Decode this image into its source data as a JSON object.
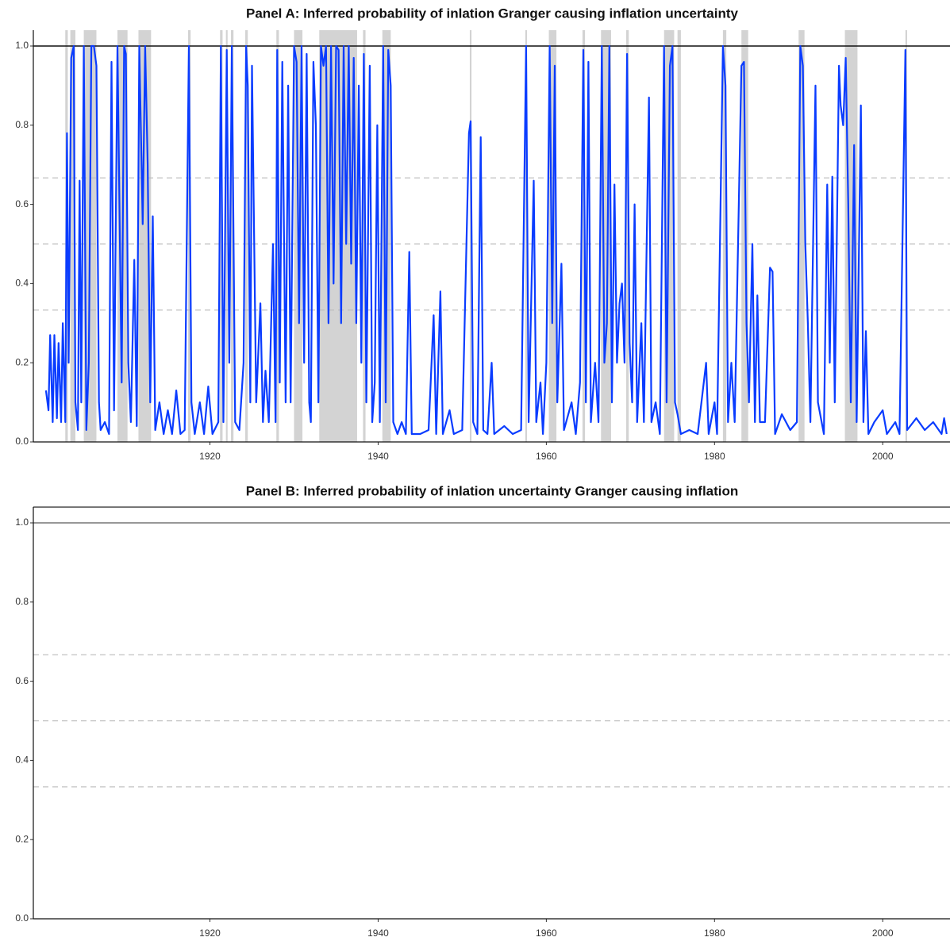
{
  "chart_data": [
    {
      "type": "line",
      "title": "Panel A: Inferred probability of inlation Granger causing inflation uncertainty",
      "color": "#0a3cff",
      "xlim": [
        1899,
        2008
      ],
      "ylim": [
        0,
        1.04
      ],
      "xticks": [
        1920,
        1940,
        1960,
        1980,
        2000
      ],
      "yticks": [
        {
          "value": 0,
          "label": "0.0"
        },
        0.2,
        0.4,
        0.6,
        0.8,
        {
          "value": 1,
          "label": "1.0"
        }
      ],
      "reference_lines": [
        {
          "value": 1,
          "style": "solid"
        },
        {
          "value": 0.667,
          "style": "dashed"
        },
        {
          "value": 0.5,
          "style": "dashed"
        },
        {
          "value": 0.333,
          "style": "dashed"
        }
      ],
      "shaded": [
        [
          1902.8,
          1903.1
        ],
        [
          1903.4,
          1904.0
        ],
        [
          1905.0,
          1906.5
        ],
        [
          1909.0,
          1910.2
        ],
        [
          1911.5,
          1913.0
        ],
        [
          1917.4,
          1917.7
        ],
        [
          1921.2,
          1921.5
        ],
        [
          1921.9,
          1922.1
        ],
        [
          1922.5,
          1922.8
        ],
        [
          1924.2,
          1924.5
        ],
        [
          1927.9,
          1928.2
        ],
        [
          1930.0,
          1931.0
        ],
        [
          1933.0,
          1937.5
        ],
        [
          1938.2,
          1938.5
        ],
        [
          1940.5,
          1941.5
        ],
        [
          1950.9,
          1951.1
        ],
        [
          1957.5,
          1957.7
        ],
        [
          1960.3,
          1961.2
        ],
        [
          1964.3,
          1964.6
        ],
        [
          1966.5,
          1967.7
        ],
        [
          1969.5,
          1969.8
        ],
        [
          1974.0,
          1975.2
        ],
        [
          1975.6,
          1976.0
        ],
        [
          1981.0,
          1981.4
        ],
        [
          1983.2,
          1984.0
        ],
        [
          1990.0,
          1990.7
        ],
        [
          1995.5,
          1997.0
        ],
        [
          2002.7,
          2002.9
        ]
      ],
      "x": [
        1900.5,
        1900.8,
        1901.0,
        1901.3,
        1901.5,
        1901.8,
        1902.0,
        1902.3,
        1902.5,
        1902.8,
        1903.0,
        1903.2,
        1903.5,
        1903.8,
        1904.0,
        1904.3,
        1904.5,
        1904.7,
        1905.0,
        1905.3,
        1905.6,
        1905.9,
        1906.2,
        1906.5,
        1906.8,
        1907.0,
        1907.5,
        1908.0,
        1908.3,
        1908.6,
        1909.0,
        1909.5,
        1909.8,
        1910.0,
        1910.3,
        1910.6,
        1911.0,
        1911.3,
        1911.6,
        1912.0,
        1912.3,
        1912.6,
        1912.9,
        1913.2,
        1913.5,
        1914.0,
        1914.5,
        1915.0,
        1915.5,
        1916.0,
        1916.5,
        1917.0,
        1917.5,
        1917.8,
        1918.2,
        1918.8,
        1919.3,
        1919.8,
        1920.3,
        1921.0,
        1921.3,
        1921.6,
        1922.0,
        1922.3,
        1922.6,
        1923.0,
        1923.5,
        1924.0,
        1924.3,
        1924.5,
        1924.8,
        1925.0,
        1925.5,
        1926.0,
        1926.3,
        1926.6,
        1927.0,
        1927.5,
        1927.8,
        1928.0,
        1928.3,
        1928.6,
        1929.0,
        1929.3,
        1929.6,
        1930.0,
        1930.3,
        1930.6,
        1930.9,
        1931.2,
        1931.5,
        1931.8,
        1932.0,
        1932.3,
        1932.6,
        1932.9,
        1933.2,
        1933.5,
        1933.8,
        1934.1,
        1934.4,
        1934.7,
        1935.0,
        1935.3,
        1935.6,
        1935.9,
        1936.2,
        1936.5,
        1936.8,
        1937.1,
        1937.4,
        1937.7,
        1938.0,
        1938.3,
        1938.6,
        1939.0,
        1939.3,
        1939.6,
        1939.9,
        1940.2,
        1940.6,
        1940.9,
        1941.2,
        1941.5,
        1941.8,
        1942.3,
        1942.8,
        1943.3,
        1943.7,
        1944.0,
        1945.0,
        1946.0,
        1946.6,
        1946.9,
        1947.4,
        1947.7,
        1948.5,
        1949.0,
        1950.0,
        1950.8,
        1951.0,
        1951.3,
        1951.8,
        1952.2,
        1952.5,
        1953.0,
        1953.5,
        1953.8,
        1955.0,
        1956.0,
        1957.0,
        1957.6,
        1957.9,
        1958.5,
        1958.8,
        1959.3,
        1959.6,
        1960.0,
        1960.4,
        1960.7,
        1961.0,
        1961.3,
        1961.8,
        1962.1,
        1963.0,
        1963.5,
        1964.0,
        1964.4,
        1964.7,
        1965.0,
        1965.3,
        1965.8,
        1966.2,
        1966.6,
        1966.9,
        1967.2,
        1967.5,
        1967.8,
        1968.1,
        1968.4,
        1968.7,
        1969.0,
        1969.3,
        1969.6,
        1969.9,
        1970.2,
        1970.5,
        1970.8,
        1971.3,
        1971.6,
        1972.2,
        1972.5,
        1973.0,
        1973.5,
        1974.0,
        1974.3,
        1974.7,
        1975.0,
        1975.3,
        1975.6,
        1976.0,
        1977.0,
        1978.0,
        1979.0,
        1979.3,
        1980.0,
        1980.3,
        1981.0,
        1981.3,
        1981.6,
        1982.0,
        1982.4,
        1983.2,
        1983.5,
        1983.8,
        1984.1,
        1984.5,
        1984.8,
        1985.1,
        1985.4,
        1986.0,
        1986.6,
        1986.9,
        1987.2,
        1988.0,
        1989.0,
        1989.8,
        1990.2,
        1990.5,
        1990.8,
        1991.1,
        1991.4,
        1992.0,
        1992.3,
        1993.0,
        1993.4,
        1993.7,
        1994.0,
        1994.3,
        1994.8,
        1995.0,
        1995.3,
        1995.6,
        1995.9,
        1996.2,
        1996.6,
        1996.9,
        1997.4,
        1997.7,
        1998.0,
        1998.3,
        1999.0,
        2000.0,
        2000.5,
        2001.5,
        2002.0,
        2002.7,
        2002.9,
        2004.0,
        2005.0,
        2006.0,
        2007.0,
        2007.3,
        2007.6
      ],
      "values": [
        0.13,
        0.08,
        0.27,
        0.05,
        0.27,
        0.06,
        0.25,
        0.05,
        0.3,
        0.05,
        0.78,
        0.2,
        0.97,
        1.0,
        0.1,
        0.03,
        0.66,
        0.1,
        1.0,
        0.03,
        0.2,
        1.0,
        1.0,
        0.95,
        0.1,
        0.03,
        0.05,
        0.02,
        0.96,
        0.08,
        1.0,
        0.15,
        1.0,
        0.98,
        0.2,
        0.05,
        0.46,
        0.04,
        1.0,
        0.55,
        1.0,
        0.7,
        0.1,
        0.57,
        0.03,
        0.1,
        0.02,
        0.08,
        0.02,
        0.13,
        0.02,
        0.03,
        1.0,
        0.1,
        0.02,
        0.1,
        0.02,
        0.14,
        0.02,
        0.05,
        1.0,
        0.05,
        0.99,
        0.2,
        1.0,
        0.05,
        0.03,
        0.2,
        1.0,
        0.9,
        0.1,
        0.95,
        0.1,
        0.35,
        0.05,
        0.18,
        0.05,
        0.5,
        0.05,
        0.99,
        0.15,
        0.96,
        0.1,
        0.9,
        0.1,
        1.0,
        0.96,
        0.3,
        1.0,
        0.2,
        0.98,
        0.1,
        0.05,
        0.96,
        0.8,
        0.1,
        1.0,
        0.95,
        1.0,
        0.3,
        1.0,
        0.4,
        1.0,
        0.99,
        0.3,
        1.0,
        0.5,
        1.0,
        0.45,
        0.97,
        0.3,
        0.9,
        0.2,
        0.98,
        0.1,
        0.95,
        0.05,
        0.15,
        0.8,
        0.05,
        1.0,
        0.1,
        0.99,
        0.9,
        0.05,
        0.02,
        0.05,
        0.02,
        0.48,
        0.02,
        0.02,
        0.03,
        0.32,
        0.02,
        0.38,
        0.02,
        0.08,
        0.02,
        0.03,
        0.78,
        0.81,
        0.05,
        0.02,
        0.77,
        0.03,
        0.02,
        0.2,
        0.02,
        0.04,
        0.02,
        0.03,
        1.0,
        0.05,
        0.66,
        0.05,
        0.15,
        0.02,
        0.2,
        1.0,
        0.3,
        0.95,
        0.1,
        0.45,
        0.03,
        0.1,
        0.02,
        0.15,
        0.99,
        0.1,
        0.96,
        0.05,
        0.2,
        0.05,
        1.0,
        0.2,
        0.3,
        1.0,
        0.1,
        0.65,
        0.2,
        0.35,
        0.4,
        0.2,
        0.98,
        0.25,
        0.1,
        0.6,
        0.05,
        0.3,
        0.05,
        0.87,
        0.05,
        0.1,
        0.02,
        1.0,
        0.1,
        0.95,
        1.0,
        0.1,
        0.07,
        0.02,
        0.03,
        0.02,
        0.2,
        0.02,
        0.1,
        0.02,
        1.0,
        0.9,
        0.05,
        0.2,
        0.05,
        0.95,
        0.96,
        0.3,
        0.1,
        0.5,
        0.05,
        0.37,
        0.05,
        0.05,
        0.44,
        0.43,
        0.02,
        0.07,
        0.03,
        0.05,
        1.0,
        0.95,
        0.5,
        0.3,
        0.05,
        0.9,
        0.1,
        0.02,
        0.65,
        0.2,
        0.67,
        0.1,
        0.95,
        0.85,
        0.8,
        0.97,
        0.6,
        0.1,
        0.75,
        0.05,
        0.85,
        0.05,
        0.28,
        0.02,
        0.05,
        0.08,
        0.02,
        0.05,
        0.02,
        0.99,
        0.03,
        0.06,
        0.03,
        0.05,
        0.02,
        0.06,
        0.02
      ]
    },
    {
      "type": "line",
      "title": "Panel B: Inferred probability of inlation uncertainty Granger causing inflation",
      "xlim": [
        1899,
        2008
      ],
      "ylim": [
        0,
        1.04
      ],
      "xticks": [
        1920,
        1940,
        1960,
        1980,
        2000
      ],
      "yticks": [
        {
          "value": 0,
          "label": "0.0"
        },
        0.2,
        0.4,
        0.6,
        0.8,
        {
          "value": 1,
          "label": "1.0"
        }
      ],
      "reference_lines": [
        {
          "value": 1,
          "style": "solid"
        },
        {
          "value": 0.667,
          "style": "dashed"
        },
        {
          "value": 0.5,
          "style": "dashed"
        },
        {
          "value": 0.333,
          "style": "dashed"
        }
      ]
    }
  ]
}
